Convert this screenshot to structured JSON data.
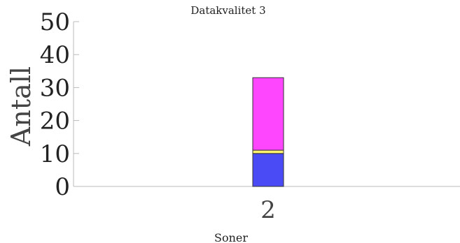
{
  "chart_data": {
    "type": "bar",
    "title": "Datakvalitet 3",
    "xlabel": "Soner",
    "ylabel": "Antall",
    "categories": [
      "2"
    ],
    "ylim": [
      0,
      50
    ],
    "yticks": [
      "0",
      "10",
      "20",
      "30",
      "40",
      "50"
    ],
    "stacked": true,
    "grid": false,
    "series": [
      {
        "values": [
          10
        ],
        "color": "#4b4bf5"
      },
      {
        "values": [
          1
        ],
        "color": "#fff26e"
      },
      {
        "values": [
          22
        ],
        "color": "#ff46ff"
      }
    ]
  }
}
